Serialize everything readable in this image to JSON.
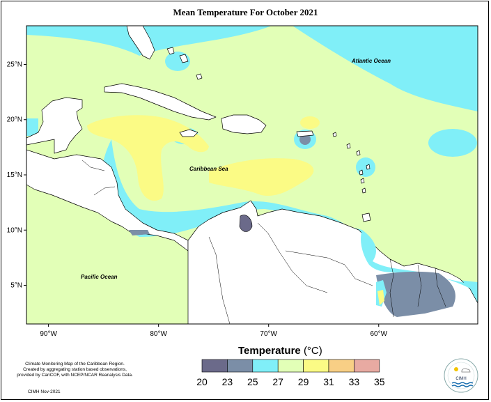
{
  "map": {
    "title": "Mean Temperature For October 2021",
    "lat_labels": [
      {
        "text": "25°N",
        "lat": 25
      },
      {
        "text": "20°N",
        "lat": 20
      },
      {
        "text": "15°N",
        "lat": 15
      },
      {
        "text": "10°N",
        "lat": 10
      },
      {
        "text": "5°N",
        "lat": 5
      }
    ],
    "lon_labels": [
      {
        "text": "90°W",
        "lon": -90
      },
      {
        "text": "80°W",
        "lon": -80
      },
      {
        "text": "70°W",
        "lon": -70
      },
      {
        "text": "60°W",
        "lon": -60
      }
    ],
    "lon_range": [
      -92,
      -51
    ],
    "lat_range": [
      1.5,
      28.5
    ],
    "regions": {
      "atlantic": "Atlantic Ocean",
      "caribbean": "Caribbean Sea",
      "pacific": "Pacific Ocean"
    }
  },
  "legend": {
    "title": "Temperature",
    "unit": "(°C)",
    "bins": [
      {
        "from": 20,
        "to": 23,
        "color": "#6b6a8a"
      },
      {
        "from": 23,
        "to": 25,
        "color": "#7b8ea7"
      },
      {
        "from": 25,
        "to": 27,
        "color": "#80eff8"
      },
      {
        "from": 27,
        "to": 29,
        "color": "#e2ffb7"
      },
      {
        "from": 29,
        "to": 31,
        "color": "#fbfb85"
      },
      {
        "from": 31,
        "to": 33,
        "color": "#f8cf85"
      },
      {
        "from": 33,
        "to": 35,
        "color": "#e8aaa2"
      }
    ],
    "labels": [
      "20",
      "23",
      "25",
      "27",
      "29",
      "31",
      "33",
      "35"
    ]
  },
  "footnote": {
    "line1": "Climate Monitoring Map of the Caribbean Region.",
    "line2": "Created by aggregating station based observations,",
    "line3": "provided by CariCOF, with NCEP/NCAR Reanalysis Data.",
    "credit": "CIMH Nov-2021",
    "logo_text": "CIMH"
  }
}
